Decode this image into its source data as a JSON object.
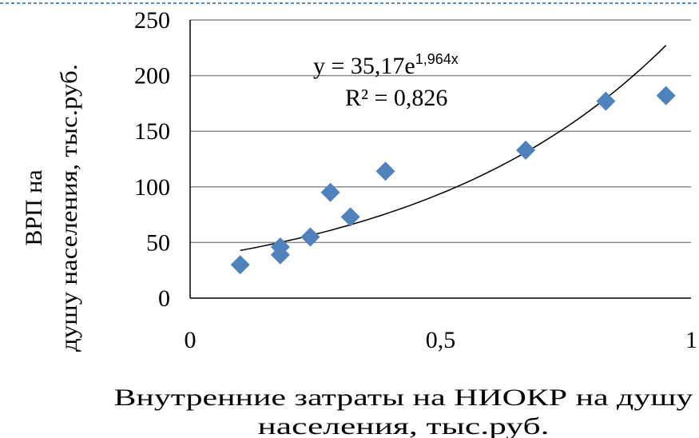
{
  "chart_data": {
    "type": "scatter",
    "title": "",
    "xlabel_lines": [
      "Внутренние затраты на НИОКР на душу",
      "населения, тыс.руб."
    ],
    "ylabel_lines": [
      "ВРП на",
      "душу населения, тыс.руб."
    ],
    "xlim": [
      0,
      1
    ],
    "ylim": [
      0,
      250
    ],
    "x_ticks": [
      0,
      0.5,
      1
    ],
    "x_tick_labels": [
      "0",
      "0,5",
      "1"
    ],
    "y_ticks": [
      0,
      50,
      100,
      150,
      200,
      250
    ],
    "y_tick_labels": [
      "0",
      "50",
      "100",
      "150",
      "200",
      "250"
    ],
    "grid": "horizontal",
    "series": [
      {
        "marker": "diamond",
        "color": "#4f81bd",
        "points": [
          {
            "x": 0.1,
            "y": 30
          },
          {
            "x": 0.18,
            "y": 39
          },
          {
            "x": 0.18,
            "y": 46
          },
          {
            "x": 0.24,
            "y": 55
          },
          {
            "x": 0.28,
            "y": 95
          },
          {
            "x": 0.32,
            "y": 73
          },
          {
            "x": 0.39,
            "y": 114
          },
          {
            "x": 0.67,
            "y": 133
          },
          {
            "x": 0.83,
            "y": 177
          },
          {
            "x": 0.95,
            "y": 182
          }
        ]
      }
    ],
    "trendline": {
      "type": "exponential",
      "a": 35.17,
      "b": 1.964,
      "x_range": [
        0.1,
        0.95
      ],
      "color": "#000000",
      "equation_base": "y = 35,17e",
      "equation_exp": "1,964x",
      "r2_label": "R² = 0,826"
    }
  },
  "colors": {
    "marker": "#4f81bd",
    "grid": "#8c8c8c",
    "axis": "#000000",
    "top_border": "#4a90d9"
  }
}
